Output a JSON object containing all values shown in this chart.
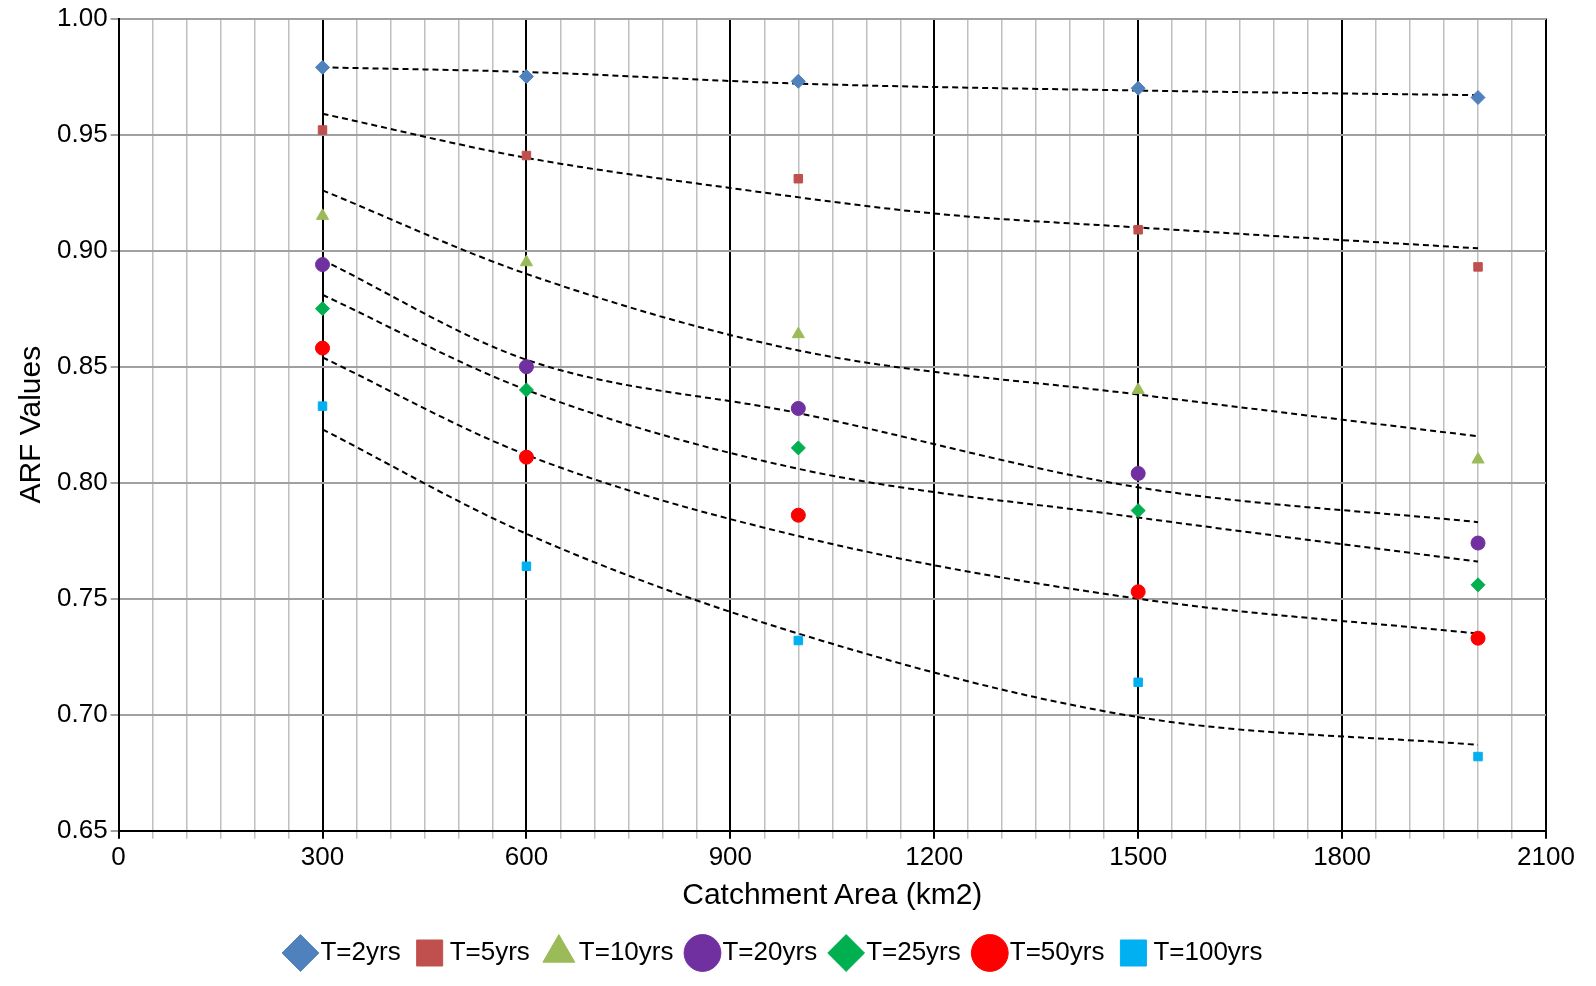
{
  "chart_data": {
    "type": "scatter",
    "xlabel": "Catchment Area (km2)",
    "ylabel": "ARF Values",
    "x": [
      300,
      600,
      1000,
      1500,
      2000
    ],
    "xlim": [
      0,
      2100
    ],
    "xticks": [
      0,
      {
        "value": 50,
        "label": null
      },
      {
        "value": 100,
        "label": null
      },
      {
        "value": 150,
        "label": null
      },
      {
        "value": 200,
        "label": null
      },
      {
        "value": 250,
        "label": null
      },
      300,
      {
        "value": 350,
        "label": null
      },
      {
        "value": 400,
        "label": null
      },
      {
        "value": 450,
        "label": null
      },
      {
        "value": 500,
        "label": null
      },
      {
        "value": 550,
        "label": null
      },
      600,
      {
        "value": 650,
        "label": null
      },
      {
        "value": 700,
        "label": null
      },
      {
        "value": 750,
        "label": null
      },
      {
        "value": 800,
        "label": null
      },
      {
        "value": 850,
        "label": null
      },
      900,
      {
        "value": 950,
        "label": null
      },
      {
        "value": 1000,
        "label": null
      },
      {
        "value": 1050,
        "label": null
      },
      {
        "value": 1100,
        "label": null
      },
      {
        "value": 1150,
        "label": null
      },
      1200,
      {
        "value": 1250,
        "label": null
      },
      {
        "value": 1300,
        "label": null
      },
      {
        "value": 1350,
        "label": null
      },
      {
        "value": 1400,
        "label": null
      },
      {
        "value": 1450,
        "label": null
      },
      1500,
      {
        "value": 1550,
        "label": null
      },
      {
        "value": 1600,
        "label": null
      },
      {
        "value": 1650,
        "label": null
      },
      {
        "value": 1700,
        "label": null
      },
      {
        "value": 1750,
        "label": null
      },
      1800,
      {
        "value": 1850,
        "label": null
      },
      {
        "value": 1900,
        "label": null
      },
      {
        "value": 1950,
        "label": null
      },
      {
        "value": 2000,
        "label": null
      },
      {
        "value": 2050,
        "label": null
      },
      2100
    ],
    "ylim": [
      0.65,
      1.0
    ],
    "yticks": [
      {
        "value": 0.65,
        "label": "0.65"
      },
      {
        "value": 0.7,
        "label": "0.70"
      },
      {
        "value": 0.75,
        "label": "0.75"
      },
      {
        "value": 0.8,
        "label": "0.80"
      },
      {
        "value": 0.85,
        "label": "0.85"
      },
      {
        "value": 0.9,
        "label": "0.90"
      },
      {
        "value": 0.95,
        "label": "0.95"
      },
      {
        "value": 1.0,
        "label": "1.00"
      }
    ],
    "grid": true,
    "legend": "bottom",
    "series": [
      {
        "name": "T=2yrs",
        "color": "#4f81bd",
        "marker": "diamond",
        "values": [
          0.979,
          0.975,
          0.973,
          0.97,
          0.966
        ]
      },
      {
        "name": "T=5yrs",
        "color": "#c0504d",
        "marker": "square",
        "values": [
          0.952,
          0.941,
          0.931,
          0.909,
          0.893
        ]
      },
      {
        "name": "T=10yrs",
        "color": "#9bbb59",
        "marker": "triangle",
        "values": [
          0.915,
          0.895,
          0.864,
          0.84,
          0.81
        ]
      },
      {
        "name": "T=20yrs",
        "color": "#7030a0",
        "marker": "circle",
        "values": [
          0.894,
          0.85,
          0.832,
          0.804,
          0.774
        ]
      },
      {
        "name": "T=25yrs",
        "color": "#00b050",
        "marker": "diamond",
        "values": [
          0.875,
          0.84,
          0.815,
          0.788,
          0.756
        ]
      },
      {
        "name": "T=50yrs",
        "color": "#ff0000",
        "marker": "circle",
        "values": [
          0.858,
          0.811,
          0.786,
          0.753,
          0.733
        ]
      },
      {
        "name": "T=100yrs",
        "color": "#00b0f0",
        "marker": "square",
        "values": [
          0.833,
          0.764,
          0.732,
          0.714,
          0.682
        ]
      },
      {
        "type": "line",
        "color": "#000000",
        "marker": "none",
        "line_style": "dashed",
        "x": [
          300,
          600,
          1000,
          1500,
          2000
        ],
        "values": [
          0.979,
          0.977,
          0.972,
          0.969,
          0.967
        ]
      },
      {
        "type": "line",
        "color": "#000000",
        "marker": "none",
        "line_style": "dashed",
        "x": [
          300,
          600,
          900,
          1200,
          1500,
          2000
        ],
        "values": [
          0.959,
          0.94,
          0.927,
          0.916,
          0.91,
          0.901
        ]
      },
      {
        "type": "line",
        "color": "#000000",
        "marker": "none",
        "line_style": "dashed",
        "x": [
          300,
          600,
          1000,
          1500,
          2000
        ],
        "values": [
          0.926,
          0.89,
          0.857,
          0.838,
          0.82
        ]
      },
      {
        "type": "line",
        "color": "#000000",
        "marker": "none",
        "line_style": "dashed",
        "x": [
          300,
          600,
          1000,
          1500,
          2000
        ],
        "values": [
          0.896,
          0.853,
          0.83,
          0.798,
          0.783
        ]
      },
      {
        "type": "line",
        "color": "#000000",
        "marker": "none",
        "line_style": "dashed",
        "x": [
          300,
          600,
          1000,
          1500,
          2000
        ],
        "values": [
          0.881,
          0.84,
          0.806,
          0.785,
          0.766
        ]
      },
      {
        "type": "line",
        "color": "#000000",
        "marker": "none",
        "line_style": "dashed",
        "x": [
          300,
          600,
          1000,
          1500,
          2000
        ],
        "values": [
          0.854,
          0.812,
          0.777,
          0.75,
          0.735
        ]
      },
      {
        "type": "line",
        "color": "#000000",
        "marker": "none",
        "line_style": "dashed",
        "x": [
          300,
          600,
          1000,
          1500,
          2000
        ],
        "values": [
          0.823,
          0.778,
          0.735,
          0.699,
          0.687
        ]
      }
    ]
  }
}
